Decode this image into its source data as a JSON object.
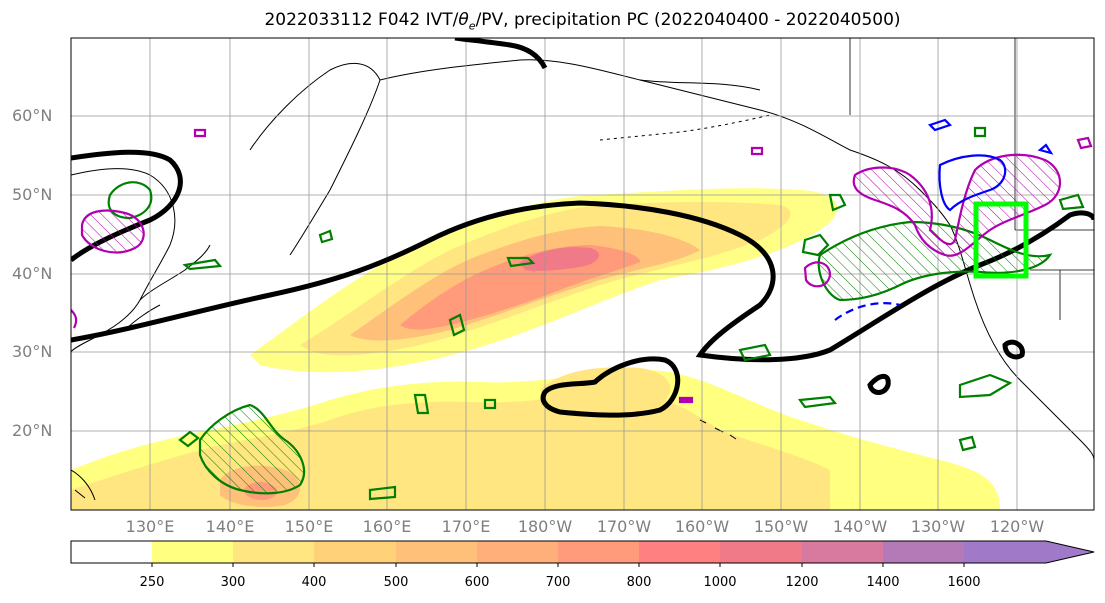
{
  "title": "2022033112 F042 IVT/θe/PV, precipitation PC (2022040400 - 2022040500)",
  "title_parts": {
    "prefix": "2022033112 F042 IVT/",
    "theta": "θ",
    "theta_sub": "e",
    "suffix": "/PV, precipitation PC (2022040400 - 2022040500)"
  },
  "lat_labels": [
    "60°N",
    "50°N",
    "40°N",
    "30°N",
    "20°N"
  ],
  "lon_labels": [
    "130°E",
    "140°E",
    "150°E",
    "160°E",
    "170°E",
    "180°W",
    "170°W",
    "160°W",
    "150°W",
    "140°W",
    "130°W",
    "120°W"
  ],
  "colorbar": {
    "ticks": [
      "250",
      "300",
      "400",
      "500",
      "600",
      "700",
      "800",
      "1000",
      "1200",
      "1400",
      "1600"
    ],
    "colors": [
      "#ffffff",
      "#ffff80",
      "#ffe680",
      "#ffd27a",
      "#ffc07a",
      "#ffb07a",
      "#ff9a7a",
      "#ff8080",
      "#f07a88",
      "#d87aa0",
      "#b47ab8",
      "#a07ac8"
    ]
  },
  "styles": {
    "coast": "#000000",
    "grid": "#999999",
    "theta_contour": "#000000",
    "precip_contour": "#008000",
    "pv_contour": "#b000b0",
    "neg_contour": "#0000ff",
    "box": "#00ff00"
  }
}
